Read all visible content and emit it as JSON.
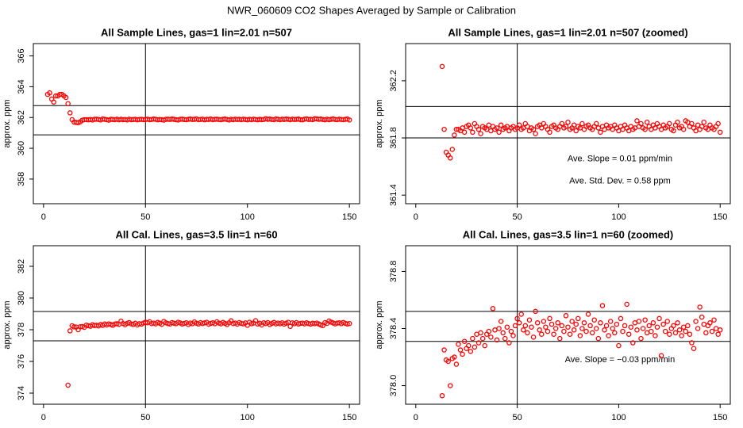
{
  "title": "NWR_060609  CO2 Shapes Averaged by Sample or Calibration",
  "chart_data": [
    {
      "type": "scatter",
      "title": "All Sample Lines, gas=1 lin=2.01 n=507",
      "ylabel": "approx. ppm",
      "color": "#ff0000",
      "xlim": [
        -5,
        155
      ],
      "xticks": [
        0,
        50,
        100,
        150
      ],
      "ylim": [
        356.4,
        366.8
      ],
      "yticks": [
        358,
        360,
        362,
        364,
        366
      ],
      "hlines": [
        362.77,
        360.87
      ],
      "vline": 50,
      "annotations": [],
      "x": [
        2,
        3,
        4,
        5,
        6,
        7,
        8,
        9,
        10,
        11,
        12,
        13,
        14,
        15,
        16,
        17,
        18,
        19,
        20,
        21,
        22,
        23,
        24,
        25,
        26,
        27,
        28,
        29,
        30,
        31,
        32,
        33,
        34,
        35,
        36,
        37,
        38,
        39,
        40,
        41,
        42,
        43,
        44,
        45,
        46,
        47,
        48,
        49,
        50,
        51,
        52,
        53,
        54,
        55,
        56,
        57,
        58,
        59,
        60,
        61,
        62,
        63,
        64,
        65,
        66,
        67,
        68,
        69,
        70,
        71,
        72,
        73,
        74,
        75,
        76,
        77,
        78,
        79,
        80,
        81,
        82,
        83,
        84,
        85,
        86,
        87,
        88,
        89,
        90,
        91,
        92,
        93,
        94,
        95,
        96,
        97,
        98,
        99,
        100,
        101,
        102,
        103,
        104,
        105,
        106,
        107,
        108,
        109,
        110,
        111,
        112,
        113,
        114,
        115,
        116,
        117,
        118,
        119,
        120,
        121,
        122,
        123,
        124,
        125,
        126,
        127,
        128,
        129,
        130,
        131,
        132,
        133,
        134,
        135,
        136,
        137,
        138,
        139,
        140,
        141,
        142,
        143,
        144,
        145,
        146,
        147,
        148,
        149,
        150
      ],
      "values": [
        363.5,
        363.6,
        363.2,
        363.0,
        363.4,
        363.4,
        363.5,
        363.5,
        363.4,
        363.3,
        362.9,
        362.3,
        361.86,
        361.7,
        361.68,
        361.66,
        361.72,
        361.82,
        361.86,
        361.86,
        361.85,
        361.87,
        361.84,
        361.88,
        361.89,
        361.87,
        361.84,
        361.9,
        361.88,
        361.86,
        361.83,
        361.88,
        361.87,
        361.86,
        361.89,
        361.85,
        361.88,
        361.86,
        361.87,
        361.84,
        361.89,
        361.86,
        361.87,
        361.88,
        361.85,
        361.87,
        361.88,
        361.86,
        361.87,
        361.89,
        361.86,
        361.87,
        361.9,
        361.88,
        361.85,
        361.87,
        361.86,
        361.83,
        361.88,
        361.89,
        361.87,
        361.9,
        361.88,
        361.86,
        361.84,
        361.88,
        361.89,
        361.87,
        361.86,
        361.88,
        361.9,
        361.87,
        361.88,
        361.91,
        361.86,
        361.87,
        361.89,
        361.85,
        361.88,
        361.87,
        361.9,
        361.86,
        361.88,
        361.89,
        361.87,
        361.86,
        361.88,
        361.9,
        361.87,
        361.84,
        361.88,
        361.86,
        361.89,
        361.87,
        361.88,
        361.86,
        361.89,
        361.87,
        361.85,
        361.88,
        361.86,
        361.89,
        361.87,
        361.85,
        361.88,
        361.86,
        361.87,
        361.92,
        361.88,
        361.9,
        361.87,
        361.86,
        361.91,
        361.88,
        361.86,
        361.89,
        361.87,
        361.9,
        361.88,
        361.86,
        361.89,
        361.87,
        361.88,
        361.9,
        361.86,
        361.85,
        361.89,
        361.91,
        361.87,
        361.88,
        361.86,
        361.92,
        361.91,
        361.88,
        361.9,
        361.87,
        361.85,
        361.89,
        361.86,
        361.88,
        361.91,
        361.87,
        361.86,
        361.89,
        361.87,
        361.86,
        361.88,
        361.9,
        361.84
      ]
    },
    {
      "type": "scatter",
      "title": "All Sample Lines, gas=1 lin=2.01 n=507 (zoomed)",
      "ylabel": "approx. ppm",
      "color": "#ff0000",
      "xlim": [
        -5,
        155
      ],
      "xticks": [
        0,
        50,
        100,
        150
      ],
      "ylim": [
        361.34,
        362.46
      ],
      "yticks": [
        361.4,
        361.8,
        362.2
      ],
      "hlines": [
        362.02,
        361.8
      ],
      "vline": 50,
      "annotations": [
        "Ave. Slope =  0.01  ppm/min",
        "Ave. Std. Dev. =  0.58  ppm"
      ],
      "x": [
        13,
        14,
        15,
        16,
        17,
        18,
        19,
        20,
        21,
        22,
        23,
        24,
        25,
        26,
        27,
        28,
        29,
        30,
        31,
        32,
        33,
        34,
        35,
        36,
        37,
        38,
        39,
        40,
        41,
        42,
        43,
        44,
        45,
        46,
        47,
        48,
        49,
        50,
        51,
        52,
        53,
        54,
        55,
        56,
        57,
        58,
        59,
        60,
        61,
        62,
        63,
        64,
        65,
        66,
        67,
        68,
        69,
        70,
        71,
        72,
        73,
        74,
        75,
        76,
        77,
        78,
        79,
        80,
        81,
        82,
        83,
        84,
        85,
        86,
        87,
        88,
        89,
        90,
        91,
        92,
        93,
        94,
        95,
        96,
        97,
        98,
        99,
        100,
        101,
        102,
        103,
        104,
        105,
        106,
        107,
        108,
        109,
        110,
        111,
        112,
        113,
        114,
        115,
        116,
        117,
        118,
        119,
        120,
        121,
        122,
        123,
        124,
        125,
        126,
        127,
        128,
        129,
        130,
        131,
        132,
        133,
        134,
        135,
        136,
        137,
        138,
        139,
        140,
        141,
        142,
        143,
        144,
        145,
        146,
        147,
        148,
        149,
        150
      ],
      "values": [
        362.3,
        361.86,
        361.7,
        361.68,
        361.66,
        361.72,
        361.82,
        361.86,
        361.86,
        361.85,
        361.87,
        361.84,
        361.88,
        361.89,
        361.87,
        361.84,
        361.9,
        361.88,
        361.86,
        361.83,
        361.88,
        361.87,
        361.86,
        361.89,
        361.85,
        361.88,
        361.86,
        361.87,
        361.84,
        361.89,
        361.86,
        361.87,
        361.88,
        361.85,
        361.87,
        361.88,
        361.86,
        361.87,
        361.89,
        361.86,
        361.87,
        361.9,
        361.88,
        361.85,
        361.87,
        361.86,
        361.83,
        361.88,
        361.89,
        361.87,
        361.9,
        361.88,
        361.86,
        361.84,
        361.88,
        361.89,
        361.87,
        361.86,
        361.88,
        361.9,
        361.87,
        361.88,
        361.91,
        361.86,
        361.87,
        361.89,
        361.85,
        361.88,
        361.87,
        361.9,
        361.86,
        361.88,
        361.89,
        361.87,
        361.86,
        361.88,
        361.9,
        361.87,
        361.84,
        361.88,
        361.86,
        361.89,
        361.87,
        361.88,
        361.86,
        361.89,
        361.87,
        361.85,
        361.88,
        361.86,
        361.89,
        361.87,
        361.85,
        361.88,
        361.86,
        361.87,
        361.92,
        361.88,
        361.9,
        361.87,
        361.86,
        361.91,
        361.88,
        361.86,
        361.89,
        361.87,
        361.9,
        361.88,
        361.86,
        361.89,
        361.87,
        361.88,
        361.9,
        361.86,
        361.85,
        361.89,
        361.91,
        361.87,
        361.88,
        361.86,
        361.92,
        361.91,
        361.88,
        361.9,
        361.87,
        361.85,
        361.89,
        361.86,
        361.88,
        361.91,
        361.87,
        361.86,
        361.89,
        361.87,
        361.86,
        361.88,
        361.9,
        361.84
      ]
    },
    {
      "type": "scatter",
      "title": "All Cal. Lines, gas=3.5 lin=1 n=60",
      "ylabel": "approx. ppm",
      "color": "#ff0000",
      "xlim": [
        -5,
        155
      ],
      "xticks": [
        0,
        50,
        100,
        150
      ],
      "ylim": [
        373.3,
        383.3
      ],
      "yticks": [
        374,
        376,
        378,
        380,
        382
      ],
      "hlines": [
        379.15,
        377.3
      ],
      "vline": 50,
      "annotations": [],
      "x": [
        12,
        13,
        14,
        15,
        16,
        17,
        18,
        19,
        20,
        21,
        22,
        23,
        24,
        25,
        26,
        27,
        28,
        29,
        30,
        31,
        32,
        33,
        34,
        35,
        36,
        37,
        38,
        39,
        40,
        41,
        42,
        43,
        44,
        45,
        46,
        47,
        48,
        49,
        50,
        51,
        52,
        53,
        54,
        55,
        56,
        57,
        58,
        59,
        60,
        61,
        62,
        63,
        64,
        65,
        66,
        67,
        68,
        69,
        70,
        71,
        72,
        73,
        74,
        75,
        76,
        77,
        78,
        79,
        80,
        81,
        82,
        83,
        84,
        85,
        86,
        87,
        88,
        89,
        90,
        91,
        92,
        93,
        94,
        95,
        96,
        97,
        98,
        99,
        100,
        101,
        102,
        103,
        104,
        105,
        106,
        107,
        108,
        109,
        110,
        111,
        112,
        113,
        114,
        115,
        116,
        117,
        118,
        119,
        120,
        121,
        122,
        123,
        124,
        125,
        126,
        127,
        128,
        129,
        130,
        131,
        132,
        133,
        134,
        135,
        136,
        137,
        138,
        139,
        140,
        141,
        142,
        143,
        144,
        145,
        146,
        147,
        148,
        149,
        150
      ],
      "values": [
        374.5,
        377.93,
        378.25,
        378.18,
        378.17,
        378.0,
        378.19,
        378.2,
        378.15,
        378.29,
        378.25,
        378.22,
        378.31,
        378.26,
        378.28,
        378.24,
        378.33,
        378.27,
        378.36,
        378.3,
        378.37,
        378.33,
        378.28,
        378.36,
        378.38,
        378.34,
        378.54,
        378.39,
        378.32,
        378.4,
        378.45,
        378.37,
        378.33,
        378.41,
        378.3,
        378.38,
        378.35,
        378.42,
        378.47,
        378.44,
        378.5,
        378.39,
        378.42,
        378.37,
        378.46,
        378.41,
        378.34,
        378.52,
        378.44,
        378.39,
        378.36,
        378.45,
        378.41,
        378.38,
        378.47,
        378.43,
        378.36,
        378.4,
        378.44,
        378.33,
        378.42,
        378.38,
        378.49,
        378.41,
        378.36,
        378.45,
        378.39,
        378.43,
        378.47,
        378.35,
        378.4,
        378.44,
        378.38,
        378.5,
        378.42,
        378.37,
        378.46,
        378.4,
        378.33,
        378.44,
        378.56,
        378.39,
        378.42,
        378.35,
        378.45,
        378.4,
        378.37,
        378.43,
        378.28,
        378.47,
        378.38,
        378.42,
        378.57,
        378.36,
        378.41,
        378.3,
        378.44,
        378.39,
        378.45,
        378.33,
        378.4,
        378.46,
        378.37,
        378.42,
        378.38,
        378.44,
        378.35,
        378.41,
        378.47,
        378.21,
        378.43,
        378.38,
        378.45,
        378.36,
        378.4,
        378.42,
        378.37,
        378.44,
        378.39,
        378.35,
        378.41,
        378.38,
        378.42,
        378.36,
        378.3,
        378.26,
        378.45,
        378.4,
        378.55,
        378.48,
        378.43,
        378.37,
        378.42,
        378.44,
        378.38,
        378.46,
        378.4,
        378.36,
        378.39
      ]
    },
    {
      "type": "scatter",
      "title": "All Cal. Lines, gas=3.5 lin=1 n=60 (zoomed)",
      "ylabel": "approx. ppm",
      "color": "#ff0000",
      "xlim": [
        -5,
        155
      ],
      "xticks": [
        0,
        50,
        100,
        150
      ],
      "ylim": [
        377.87,
        378.98
      ],
      "yticks": [
        {
          "value": 378,
          "label": "378.0"
        },
        378.4,
        378.8
      ],
      "hlines": [
        378.52,
        378.31
      ],
      "vline": 50,
      "annotations": [
        "Ave. Slope = −0.03  ppm/min"
      ],
      "x": [
        13,
        14,
        15,
        16,
        17,
        18,
        19,
        20,
        21,
        22,
        23,
        24,
        25,
        26,
        27,
        28,
        29,
        30,
        31,
        32,
        33,
        34,
        35,
        36,
        37,
        38,
        39,
        40,
        41,
        42,
        43,
        44,
        45,
        46,
        47,
        48,
        49,
        50,
        51,
        52,
        53,
        54,
        55,
        56,
        57,
        58,
        59,
        60,
        61,
        62,
        63,
        64,
        65,
        66,
        67,
        68,
        69,
        70,
        71,
        72,
        73,
        74,
        75,
        76,
        77,
        78,
        79,
        80,
        81,
        82,
        83,
        84,
        85,
        86,
        87,
        88,
        89,
        90,
        91,
        92,
        93,
        94,
        95,
        96,
        97,
        98,
        99,
        100,
        101,
        102,
        103,
        104,
        105,
        106,
        107,
        108,
        109,
        110,
        111,
        112,
        113,
        114,
        115,
        116,
        117,
        118,
        119,
        120,
        121,
        122,
        123,
        124,
        125,
        126,
        127,
        128,
        129,
        130,
        131,
        132,
        133,
        134,
        135,
        136,
        137,
        138,
        139,
        140,
        141,
        142,
        143,
        144,
        145,
        146,
        147,
        148,
        149,
        150
      ],
      "values": [
        377.93,
        378.25,
        378.18,
        378.17,
        378.0,
        378.19,
        378.2,
        378.15,
        378.29,
        378.25,
        378.22,
        378.31,
        378.26,
        378.28,
        378.24,
        378.33,
        378.27,
        378.36,
        378.3,
        378.37,
        378.33,
        378.28,
        378.36,
        378.38,
        378.34,
        378.54,
        378.39,
        378.32,
        378.4,
        378.45,
        378.37,
        378.33,
        378.41,
        378.3,
        378.38,
        378.35,
        378.42,
        378.47,
        378.44,
        378.5,
        378.39,
        378.42,
        378.37,
        378.46,
        378.41,
        378.34,
        378.52,
        378.44,
        378.39,
        378.36,
        378.45,
        378.41,
        378.38,
        378.47,
        378.43,
        378.36,
        378.4,
        378.44,
        378.33,
        378.42,
        378.38,
        378.49,
        378.41,
        378.36,
        378.45,
        378.39,
        378.43,
        378.47,
        378.35,
        378.4,
        378.44,
        378.38,
        378.5,
        378.42,
        378.37,
        378.46,
        378.4,
        378.33,
        378.44,
        378.56,
        378.39,
        378.42,
        378.35,
        378.45,
        378.4,
        378.37,
        378.43,
        378.28,
        378.47,
        378.38,
        378.42,
        378.57,
        378.36,
        378.41,
        378.3,
        378.44,
        378.39,
        378.45,
        378.33,
        378.4,
        378.46,
        378.37,
        378.42,
        378.38,
        378.44,
        378.35,
        378.41,
        378.47,
        378.21,
        378.43,
        378.38,
        378.45,
        378.36,
        378.4,
        378.42,
        378.37,
        378.44,
        378.39,
        378.35,
        378.41,
        378.38,
        378.42,
        378.36,
        378.3,
        378.26,
        378.45,
        378.4,
        378.55,
        378.48,
        378.43,
        378.37,
        378.42,
        378.44,
        378.38,
        378.46,
        378.4,
        378.36,
        378.39
      ]
    }
  ]
}
